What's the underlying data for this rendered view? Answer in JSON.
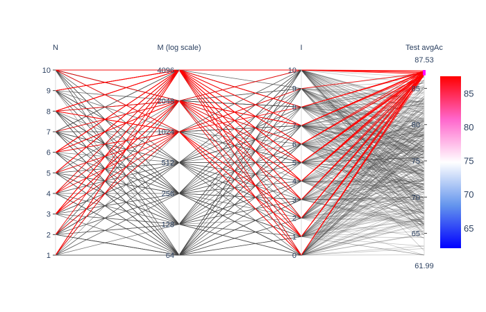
{
  "chart_data": {
    "type": "parallel_coordinates",
    "dimensions": [
      {
        "label": "N",
        "ticks": [
          "1",
          "2",
          "3",
          "4",
          "5",
          "6",
          "7",
          "8",
          "9",
          "10"
        ],
        "range": [
          1,
          10
        ]
      },
      {
        "label": "M (log scale)",
        "ticks": [
          "64",
          "128",
          "256",
          "512",
          "1024",
          "2048",
          "4096"
        ],
        "range": [
          64,
          4096
        ],
        "scale": "log"
      },
      {
        "label": "I",
        "ticks": [
          "0",
          "1",
          "2",
          "3",
          "4",
          "5",
          "6",
          "7",
          "8",
          "9",
          "10"
        ],
        "range": [
          0,
          10
        ]
      },
      {
        "label": "Test avgAc",
        "range_labels": {
          "max": "87.53",
          "min": "61.99"
        },
        "range": [
          61.99,
          87.53
        ],
        "ticks": [
          "65",
          "70",
          "75",
          "80",
          "85"
        ],
        "constraint": [
          86.8,
          87.53
        ]
      }
    ],
    "highlight_threshold": 86.8,
    "colors": {
      "base": "#444444",
      "highlight": "#ff0000",
      "constraint": "#ff00ff"
    },
    "colorbar": {
      "ticks": [
        "65",
        "70",
        "75",
        "80",
        "85"
      ],
      "range": [
        61.99,
        87.53
      ],
      "colorscale": [
        "#0000ff",
        "#6495ed",
        "#ffffff",
        "#ff66cc",
        "#ff0000"
      ]
    }
  }
}
